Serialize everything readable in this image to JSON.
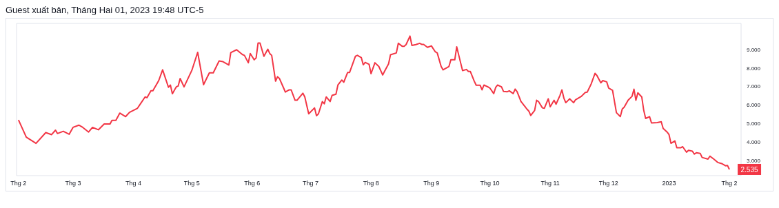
{
  "chart_data": {
    "type": "line",
    "title": "Guest xuất bản, Tháng Hai 01, 2023 19:48 UTC-5",
    "x": [
      "2022-02-01",
      "2022-02-05",
      "2022-02-10",
      "2022-02-15",
      "2022-02-18",
      "2022-02-20",
      "2022-02-21",
      "2022-02-24",
      "2022-02-27",
      "2022-03-01",
      "2022-03-04",
      "2022-03-06",
      "2022-03-09",
      "2022-03-11",
      "2022-03-14",
      "2022-03-17",
      "2022-03-20",
      "2022-03-21",
      "2022-03-23",
      "2022-03-25",
      "2022-03-28",
      "2022-03-30",
      "2022-04-03",
      "2022-04-05",
      "2022-04-07",
      "2022-04-08",
      "2022-04-10",
      "2022-04-11",
      "2022-04-14",
      "2022-04-16",
      "2022-04-19",
      "2022-04-20",
      "2022-04-21",
      "2022-04-23",
      "2022-04-24",
      "2022-04-25",
      "2022-04-27",
      "2022-05-01",
      "2022-05-04",
      "2022-05-07",
      "2022-05-10",
      "2022-05-12",
      "2022-05-15",
      "2022-05-17",
      "2022-05-20",
      "2022-05-21",
      "2022-05-24",
      "2022-05-27",
      "2022-05-28",
      "2022-05-30",
      "2022-05-31",
      "2022-06-02",
      "2022-06-03",
      "2022-06-04",
      "2022-06-05",
      "2022-06-07",
      "2022-06-09",
      "2022-06-10",
      "2022-06-11",
      "2022-06-13",
      "2022-06-14",
      "2022-06-15",
      "2022-06-17",
      "2022-06-18",
      "2022-06-20",
      "2022-06-21",
      "2022-06-23",
      "2022-06-24",
      "2022-06-27",
      "2022-06-28",
      "2022-06-30",
      "2022-07-03",
      "2022-07-04",
      "2022-07-05",
      "2022-07-07",
      "2022-07-08",
      "2022-07-09",
      "2022-07-11",
      "2022-07-12",
      "2022-07-14",
      "2022-07-15",
      "2022-07-17",
      "2022-07-18",
      "2022-07-20",
      "2022-07-21",
      "2022-07-24",
      "2022-07-25",
      "2022-07-27",
      "2022-07-28",
      "2022-07-29",
      "2022-07-31",
      "2022-08-01",
      "2022-08-03",
      "2022-08-05",
      "2022-08-07",
      "2022-08-08",
      "2022-08-10",
      "2022-08-11",
      "2022-08-14",
      "2022-08-15",
      "2022-08-17",
      "2022-08-18",
      "2022-08-19",
      "2022-08-21",
      "2022-08-22",
      "2022-08-24",
      "2022-08-26",
      "2022-08-27",
      "2022-08-28",
      "2022-08-30",
      "2022-09-01",
      "2022-09-03",
      "2022-09-04",
      "2022-09-06",
      "2022-09-07",
      "2022-09-10",
      "2022-09-11",
      "2022-09-13",
      "2022-09-14",
      "2022-09-16",
      "2022-09-17",
      "2022-09-19",
      "2022-09-20",
      "2022-09-21",
      "2022-09-23",
      "2022-09-24",
      "2022-09-26",
      "2022-09-27",
      "2022-09-28",
      "2022-09-30",
      "2022-10-01",
      "2022-10-03",
      "2022-10-04",
      "2022-10-05",
      "2022-10-07",
      "2022-10-08",
      "2022-10-10",
      "2022-10-11",
      "2022-10-13",
      "2022-10-14",
      "2022-10-15",
      "2022-10-17",
      "2022-10-20",
      "2022-10-21",
      "2022-10-22",
      "2022-10-24",
      "2022-10-25",
      "2022-10-26",
      "2022-10-28",
      "2022-10-29",
      "2022-10-31",
      "2022-11-01",
      "2022-11-03",
      "2022-11-04",
      "2022-11-06",
      "2022-11-07",
      "2022-11-08",
      "2022-11-09",
      "2022-11-11",
      "2022-11-13",
      "2022-11-14",
      "2022-11-17",
      "2022-11-19",
      "2022-11-20",
      "2022-11-22",
      "2022-11-24",
      "2022-11-25",
      "2022-11-27",
      "2022-11-28",
      "2022-11-30",
      "2022-12-01",
      "2022-12-03",
      "2022-12-05",
      "2022-12-07",
      "2022-12-08",
      "2022-12-09",
      "2022-12-11",
      "2022-12-13",
      "2022-12-14",
      "2022-12-15",
      "2022-12-16",
      "2022-12-18",
      "2022-12-19",
      "2022-12-20",
      "2022-12-22",
      "2022-12-23",
      "2022-12-26",
      "2022-12-28",
      "2022-12-29",
      "2022-12-31",
      "2023-01-01",
      "2023-01-02",
      "2023-01-04",
      "2023-01-05",
      "2023-01-07",
      "2023-01-08",
      "2023-01-10",
      "2023-01-11",
      "2023-01-13",
      "2023-01-14",
      "2023-01-15",
      "2023-01-17",
      "2023-01-18",
      "2023-01-21",
      "2023-01-22",
      "2023-01-24",
      "2023-01-26",
      "2023-01-28",
      "2023-01-30",
      "2023-01-31",
      "2023-02-01"
    ],
    "series": [
      {
        "color": "#f23645",
        "values": [
          5200,
          4270,
          3940,
          4520,
          4410,
          4650,
          4470,
          4590,
          4430,
          4800,
          4920,
          4800,
          4550,
          4800,
          4670,
          4980,
          4980,
          5180,
          5180,
          5570,
          5380,
          5610,
          5820,
          6130,
          6440,
          6400,
          6770,
          6770,
          7320,
          7900,
          6960,
          7080,
          6610,
          6980,
          7030,
          7430,
          6980,
          7870,
          8840,
          7100,
          7740,
          7740,
          8380,
          8340,
          8160,
          8830,
          8980,
          8720,
          8680,
          8280,
          8780,
          8440,
          8540,
          9340,
          9340,
          8630,
          9010,
          8780,
          8680,
          7290,
          7530,
          7430,
          6950,
          6700,
          6820,
          6820,
          6260,
          6260,
          6640,
          6440,
          5530,
          5850,
          5430,
          5530,
          6190,
          6070,
          6440,
          6190,
          6520,
          6590,
          7080,
          7350,
          7230,
          7760,
          7760,
          8630,
          8680,
          8560,
          8170,
          8300,
          8200,
          7690,
          8280,
          8080,
          7620,
          7830,
          8220,
          8710,
          8810,
          9330,
          9170,
          9170,
          9260,
          9720,
          9210,
          9260,
          9330,
          9270,
          9270,
          9110,
          9190,
          8870,
          8810,
          8080,
          7900,
          8080,
          8440,
          8440,
          9140,
          8280,
          7860,
          7920,
          7810,
          7810,
          7290,
          7070,
          7070,
          6820,
          7080,
          6980,
          6920,
          6620,
          6950,
          7080,
          6980,
          6740,
          6720,
          6770,
          6620,
          6860,
          6720,
          6190,
          5790,
          5680,
          5440,
          5710,
          6260,
          6190,
          5850,
          5830,
          6340,
          5910,
          6260,
          6050,
          6520,
          6820,
          6380,
          6130,
          6340,
          6130,
          6290,
          6470,
          6680,
          6700,
          7130,
          7710,
          7590,
          7200,
          7320,
          7250,
          6920,
          6800,
          5590,
          5380,
          5790,
          5890,
          6260,
          6470,
          6860,
          6260,
          6660,
          6440,
          5730,
          5280,
          5380,
          5040,
          5060,
          5100,
          4740,
          4550,
          4410,
          3940,
          4070,
          3700,
          3700,
          3760,
          3460,
          3560,
          3520,
          3360,
          3430,
          3400,
          3180,
          3090,
          3250,
          3090,
          2910,
          2850,
          2730,
          2750,
          2535
        ]
      }
    ],
    "xlim": [
      "2022-01-31",
      "2023-02-07"
    ],
    "xticks": [
      {
        "value": "2022-02-01",
        "label": "Thg 2"
      },
      {
        "value": "2022-03-01",
        "label": "Thg 3"
      },
      {
        "value": "2022-04-01",
        "label": "Thg 4"
      },
      {
        "value": "2022-05-01",
        "label": "Thg 5"
      },
      {
        "value": "2022-06-01",
        "label": "Thg 6"
      },
      {
        "value": "2022-07-01",
        "label": "Thg 7"
      },
      {
        "value": "2022-08-01",
        "label": "Thg 8"
      },
      {
        "value": "2022-09-01",
        "label": "Thg 9"
      },
      {
        "value": "2022-10-01",
        "label": "Thg 10"
      },
      {
        "value": "2022-11-01",
        "label": "Thg 11"
      },
      {
        "value": "2022-12-01",
        "label": "Thg 12"
      },
      {
        "value": "2023-01-01",
        "label": "2023"
      },
      {
        "value": "2023-02-01",
        "label": "Thg 2"
      }
    ],
    "ylim": [
      2200,
      10400
    ],
    "yticks": [
      {
        "value": 3000,
        "label": "3.000"
      },
      {
        "value": 4000,
        "label": "4.000"
      },
      {
        "value": 5000,
        "label": "5.000"
      },
      {
        "value": 6000,
        "label": "6.000"
      },
      {
        "value": 7000,
        "label": "7.000"
      },
      {
        "value": 8000,
        "label": "8.000"
      },
      {
        "value": 9000,
        "label": "9.000"
      }
    ],
    "annotations": [
      {
        "text": "2.535",
        "x": "2023-02-01",
        "y": 2535
      }
    ],
    "grid": false,
    "legend": false,
    "marker": "none",
    "line_style": "solid"
  }
}
